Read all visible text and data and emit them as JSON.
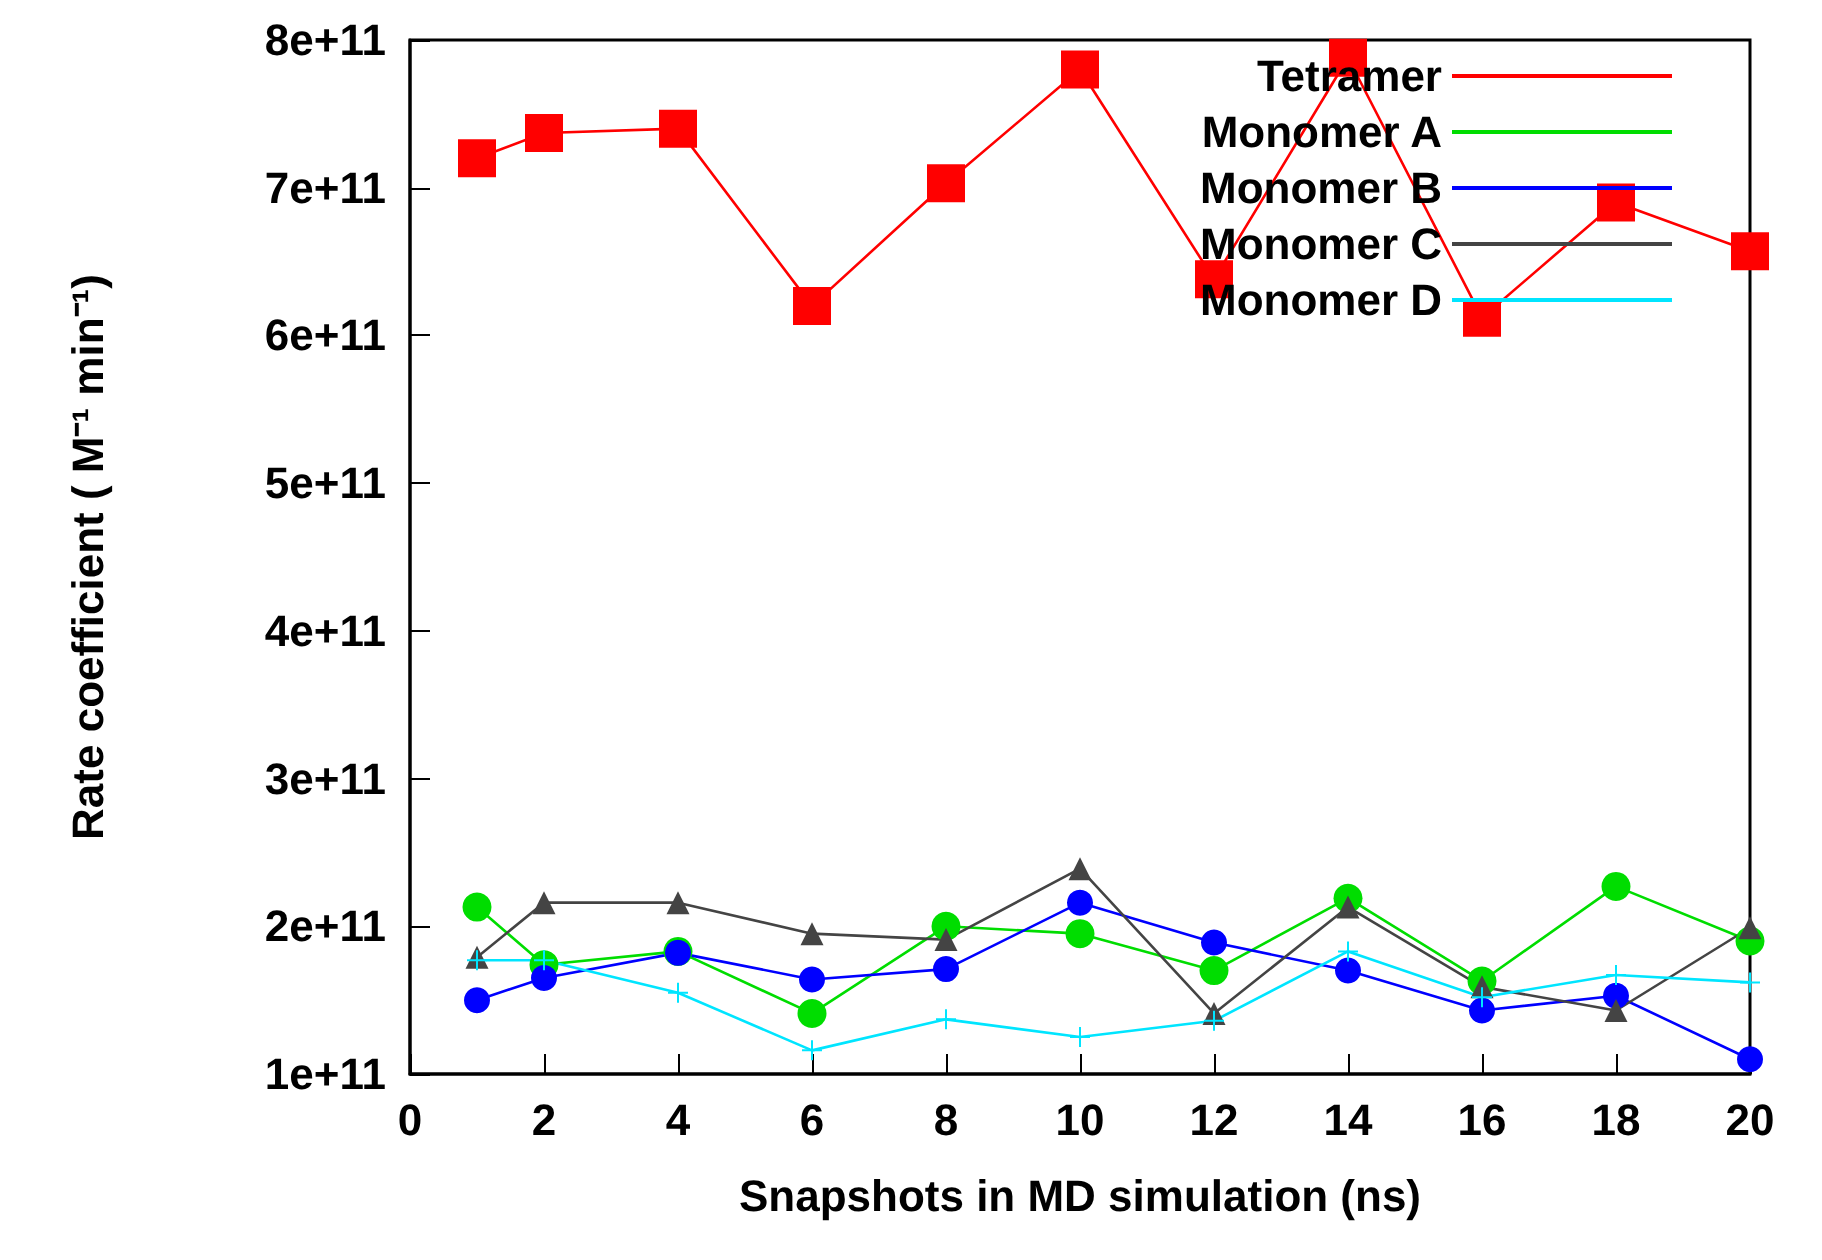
{
  "chart_data": {
    "type": "line",
    "xlabel": "Snapshots in MD simulation (ns)",
    "ylabel": "Rate coefficient ( M⁻¹ min⁻¹)",
    "x": [
      1,
      2,
      4,
      6,
      8,
      10,
      12,
      14,
      16,
      18,
      20
    ],
    "series": [
      {
        "name": "Tetramer",
        "color": "#ff0000",
        "marker": "square",
        "values": [
          720000000000.0,
          737000000000.0,
          740000000000.0,
          620000000000.0,
          703000000000.0,
          780000000000.0,
          638000000000.0,
          788000000000.0,
          612000000000.0,
          690000000000.0,
          657000000000.0
        ]
      },
      {
        "name": "Monomer A",
        "color": "#00dd00",
        "marker": "circle",
        "values": [
          213000000000.0,
          174000000000.0,
          183000000000.0,
          141000000000.0,
          200000000000.0,
          195000000000.0,
          170000000000.0,
          219000000000.0,
          163000000000.0,
          227000000000.0,
          190000000000.0
        ]
      },
      {
        "name": "Monomer B",
        "color": "#0000ff",
        "marker": "circle",
        "values": [
          150000000000.0,
          165000000000.0,
          182000000000.0,
          164000000000.0,
          171000000000.0,
          216000000000.0,
          189000000000.0,
          170000000000.0,
          143000000000.0,
          153000000000.0,
          110000000000.0
        ]
      },
      {
        "name": "Monomer C",
        "color": "#444444",
        "marker": "triangle",
        "values": [
          179000000000.0,
          216000000000.0,
          216000000000.0,
          195000000000.0,
          191000000000.0,
          239000000000.0,
          141000000000.0,
          213000000000.0,
          159000000000.0,
          143000000000.0,
          199000000000.0
        ]
      },
      {
        "name": "Monomer D",
        "color": "#00e5ff",
        "marker": "cross",
        "values": [
          177000000000.0,
          177000000000.0,
          155000000000.0,
          116000000000.0,
          137000000000.0,
          125000000000.0,
          136000000000.0,
          183000000000.0,
          152000000000.0,
          167000000000.0,
          162000000000.0
        ]
      }
    ],
    "xlim": [
      0,
      20
    ],
    "xticks": [
      0,
      2,
      4,
      6,
      8,
      10,
      12,
      14,
      16,
      18,
      20
    ],
    "ylim": [
      100000000000.0,
      800000000000.0
    ],
    "yticks": [
      {
        "value": 100000000000.0,
        "label": "1e+11"
      },
      {
        "value": 200000000000.0,
        "label": "2e+11"
      },
      {
        "value": 300000000000.0,
        "label": "3e+11"
      },
      {
        "value": 400000000000.0,
        "label": "4e+11"
      },
      {
        "value": 500000000000.0,
        "label": "5e+11"
      },
      {
        "value": 600000000000.0,
        "label": "6e+11"
      },
      {
        "value": 700000000000.0,
        "label": "7e+11"
      },
      {
        "value": 800000000000.0,
        "label": "8e+11"
      }
    ],
    "legend": "top right",
    "grid": false,
    "line_style": "solid"
  }
}
